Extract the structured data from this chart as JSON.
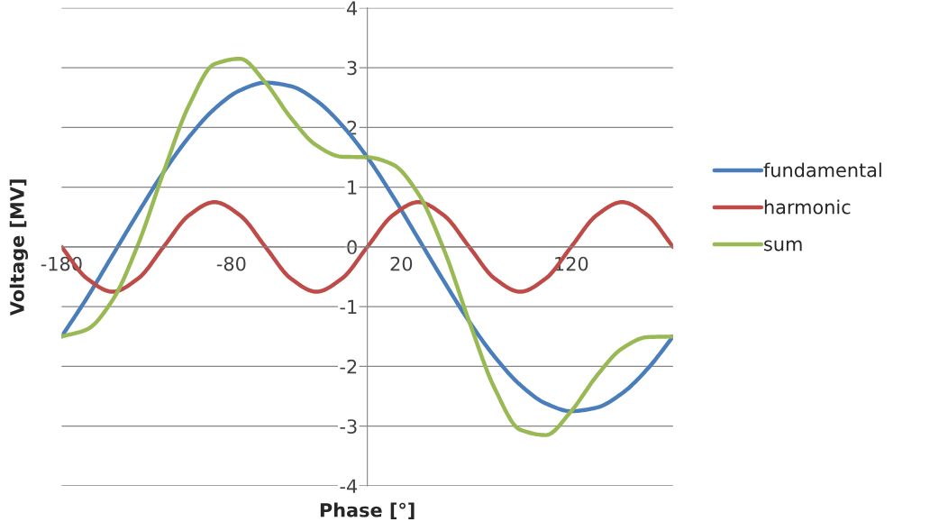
{
  "chart_data": {
    "type": "line",
    "xlabel": "Phase [°]",
    "ylabel": "Voltage [MV]",
    "x": [
      -180,
      -165,
      -150,
      -135,
      -120,
      -105,
      -90,
      -75,
      -60,
      -45,
      -30,
      -15,
      0,
      15,
      30,
      45,
      60,
      75,
      90,
      105,
      120,
      135,
      150,
      165,
      180
    ],
    "series": [
      {
        "name": "fundamental",
        "color": "#4a7ebb",
        "values": [
          -1.5,
          -0.85,
          -0.14,
          0.57,
          1.25,
          1.84,
          2.31,
          2.62,
          2.75,
          2.69,
          2.45,
          2.04,
          1.5,
          0.85,
          0.14,
          -0.57,
          -1.25,
          -1.84,
          -2.31,
          -2.62,
          -2.75,
          -2.69,
          -2.45,
          -2.04,
          -1.5
        ]
      },
      {
        "name": "harmonic",
        "color": "#be4b48",
        "values": [
          0,
          -0.53,
          -0.75,
          -0.53,
          0,
          0.53,
          0.75,
          0.53,
          0,
          -0.53,
          -0.75,
          -0.53,
          0,
          0.53,
          0.75,
          0.53,
          0,
          -0.53,
          -0.75,
          -0.53,
          0,
          0.53,
          0.75,
          0.53,
          0
        ]
      },
      {
        "name": "sum",
        "color": "#98b954",
        "values": [
          -1.5,
          -1.38,
          -0.89,
          0.04,
          1.25,
          2.37,
          3.06,
          3.15,
          2.75,
          2.16,
          1.7,
          1.51,
          1.5,
          1.38,
          0.89,
          -0.04,
          -1.25,
          -2.37,
          -3.06,
          -3.15,
          -2.75,
          -2.16,
          -1.7,
          -1.51,
          -1.5
        ]
      }
    ],
    "xlim": [
      -180,
      180
    ],
    "xticks": [
      -180,
      -80,
      20,
      120
    ],
    "ylim": [
      -4,
      4
    ],
    "yticks": [
      -4,
      -3,
      -2,
      -1,
      0,
      1,
      2,
      3,
      4
    ],
    "grid": "y",
    "legend": "right",
    "marker": "none",
    "line_style": "solid"
  }
}
